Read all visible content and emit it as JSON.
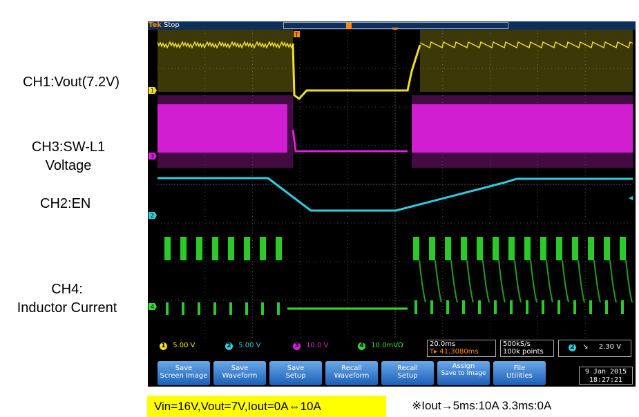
{
  "labels": {
    "ch1": "CH1:Vout(7.2V)",
    "ch3_line1": "CH3:SW-L1",
    "ch3_line2": "Voltage",
    "ch2": "CH2:EN",
    "ch4_line1": "CH4:",
    "ch4_line2": "Inductor Current"
  },
  "scope": {
    "brand": "Tek",
    "state": "Stop",
    "channel_markers": [
      "1",
      "3",
      "2",
      "4"
    ],
    "trigger_marker": "T",
    "status": {
      "ch1_scale": "5.00 V",
      "ch2_scale": "5.00 V",
      "ch3_scale": "10.0 V",
      "ch4_scale": "10.0mVΩ",
      "timebase": "20.0ms",
      "trigger_pos": "41.3080ms",
      "sample_rate": "500kS/s",
      "record_length": "100k points",
      "trigger_channel": "2",
      "trigger_slope": "↘",
      "trigger_level": "2.30 V"
    },
    "buttons": [
      {
        "line1": "Save",
        "line2": "Screen Image"
      },
      {
        "line1": "Save",
        "line2": "Waveform"
      },
      {
        "line1": "Save",
        "line2": "Setup"
      },
      {
        "line1": "Recall",
        "line2": "Waveform"
      },
      {
        "line1": "Recall",
        "line2": "Setup"
      },
      {
        "line1": "Assign",
        "line2": "Save to Image"
      },
      {
        "line1": "File",
        "line2": "Utilities"
      }
    ],
    "date": "9 Jan  2015",
    "time": "18:27:21"
  },
  "colors": {
    "ch1": "#f0e020",
    "ch2": "#2ad0e0",
    "ch3": "#e020e0",
    "ch4": "#30e030"
  },
  "footer": {
    "left": "Vin=16V,Vout=7V,Iout=0A⇔10A",
    "right": "※Iout→5ms:10A  3.3ms:0A"
  }
}
